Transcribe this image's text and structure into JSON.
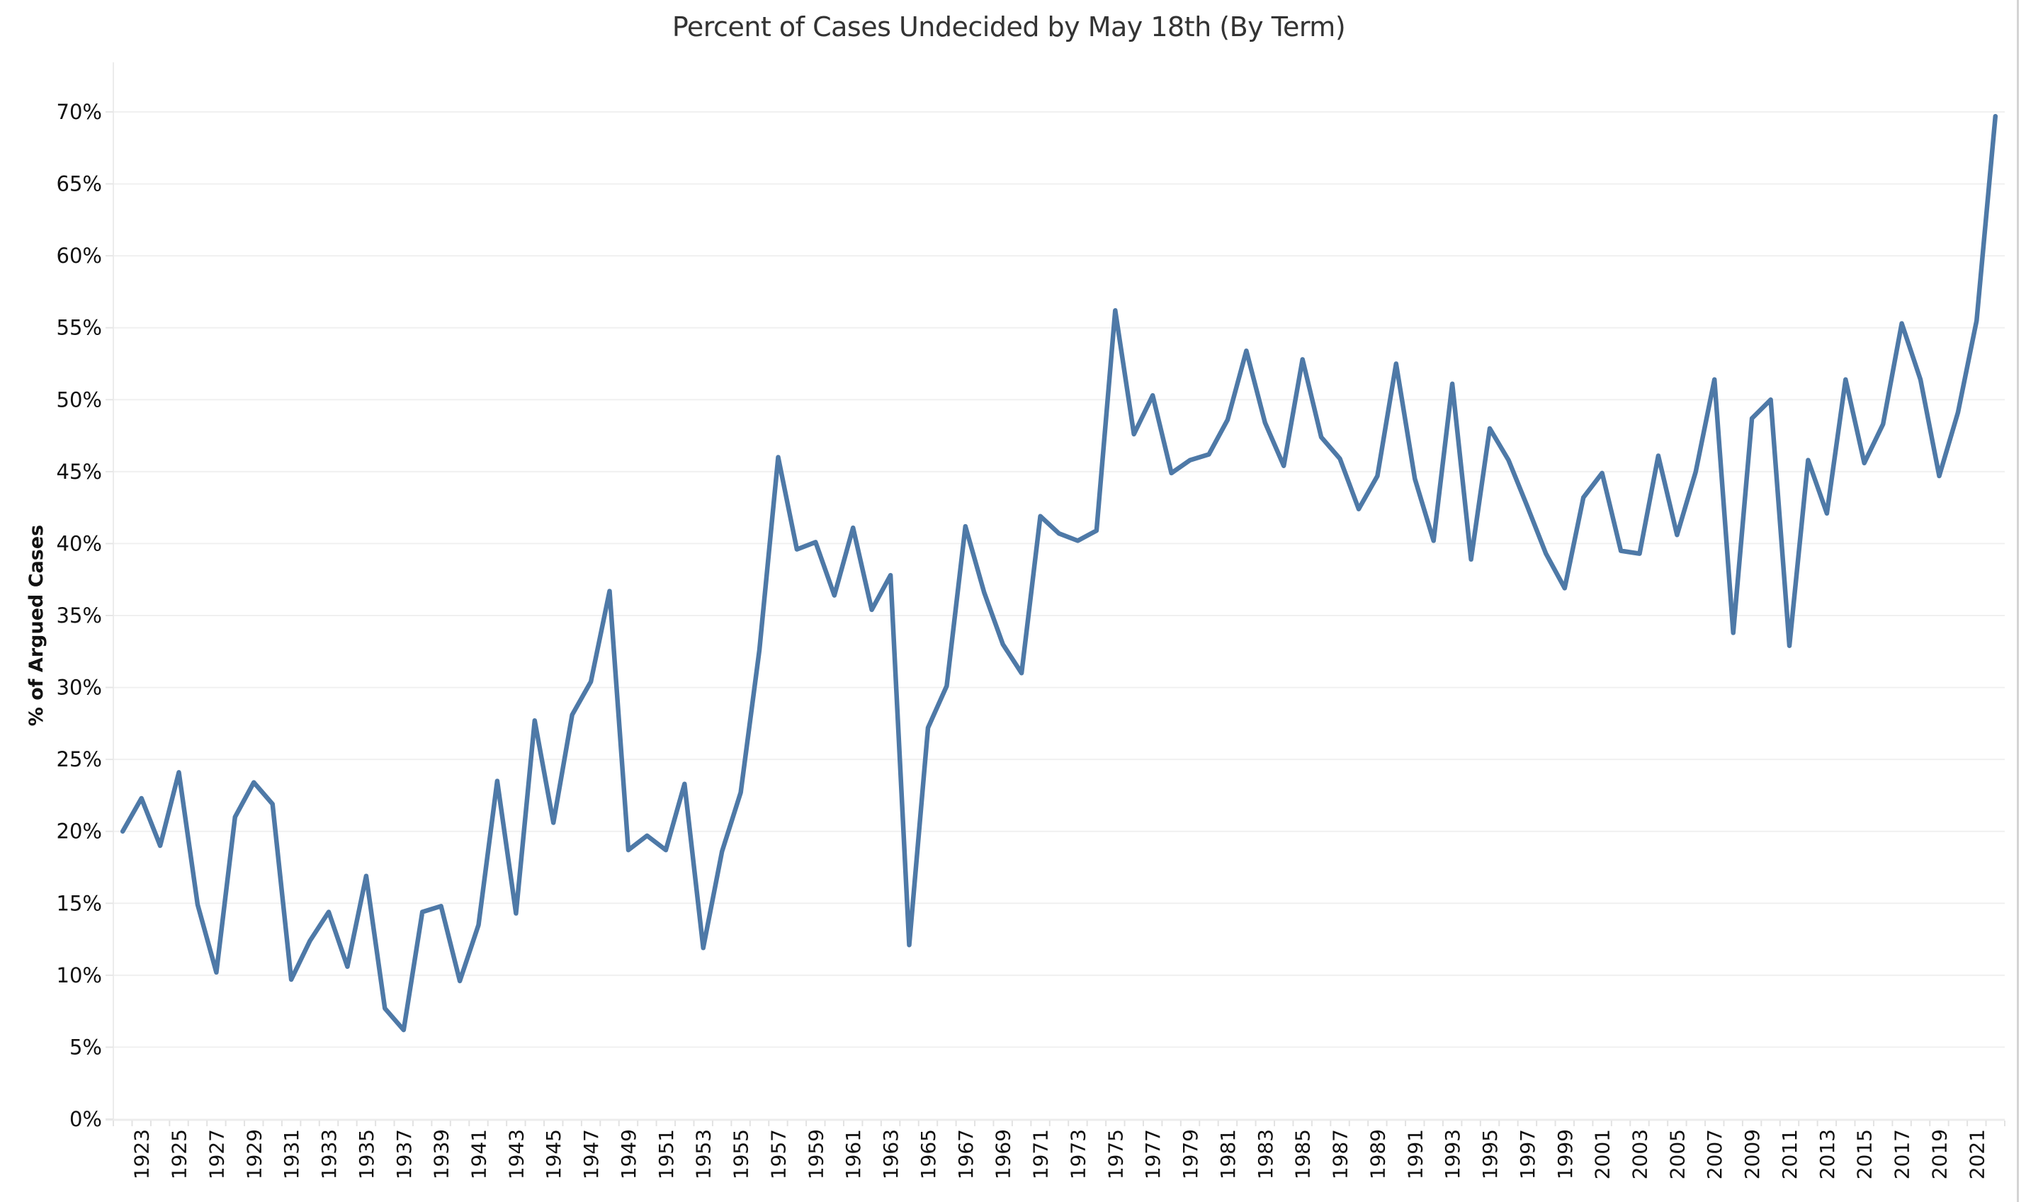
{
  "chart_data": {
    "type": "line",
    "title": "Percent of Cases Undecided by May 18th (By Term)",
    "xlabel": "",
    "ylabel": "% of Argued Cases",
    "ylim": [
      0,
      70
    ],
    "yticks": [
      0,
      5,
      10,
      15,
      20,
      25,
      30,
      35,
      40,
      45,
      50,
      55,
      60,
      65,
      70
    ],
    "ytick_labels": [
      "0%",
      "5%",
      "10%",
      "15%",
      "20%",
      "25%",
      "30%",
      "35%",
      "40%",
      "45%",
      "50%",
      "55%",
      "60%",
      "65%",
      "70%"
    ],
    "xlim": [
      1922,
      2022
    ],
    "xtick_labels": [
      "1923",
      "1925",
      "1927",
      "1929",
      "1931",
      "1933",
      "1935",
      "1937",
      "1939",
      "1941",
      "1943",
      "1945",
      "1947",
      "1949",
      "1951",
      "1953",
      "1955",
      "1957",
      "1959",
      "1961",
      "1963",
      "1965",
      "1967",
      "1969",
      "1971",
      "1973",
      "1975",
      "1977",
      "1979",
      "1981",
      "1983",
      "1985",
      "1987",
      "1989",
      "1991",
      "1993",
      "1995",
      "1997",
      "1999",
      "2001",
      "2003",
      "2005",
      "2007",
      "2009",
      "2011",
      "2013",
      "2015",
      "2017",
      "2019",
      "2021"
    ],
    "grid": "horizontal",
    "legend": "none",
    "line_color": "#4e79a7",
    "series": [
      {
        "name": "% of Argued Cases",
        "x": [
          1922,
          1923,
          1924,
          1925,
          1926,
          1927,
          1928,
          1929,
          1930,
          1931,
          1932,
          1933,
          1934,
          1935,
          1936,
          1937,
          1938,
          1939,
          1940,
          1941,
          1942,
          1943,
          1944,
          1945,
          1946,
          1947,
          1948,
          1949,
          1950,
          1951,
          1952,
          1953,
          1954,
          1955,
          1956,
          1957,
          1958,
          1959,
          1960,
          1961,
          1962,
          1963,
          1964,
          1965,
          1966,
          1967,
          1968,
          1969,
          1970,
          1971,
          1972,
          1973,
          1974,
          1975,
          1976,
          1977,
          1978,
          1979,
          1980,
          1981,
          1982,
          1983,
          1984,
          1985,
          1986,
          1987,
          1988,
          1989,
          1990,
          1991,
          1992,
          1993,
          1994,
          1995,
          1996,
          1997,
          1998,
          1999,
          2000,
          2001,
          2002,
          2003,
          2004,
          2005,
          2006,
          2007,
          2008,
          2009,
          2010,
          2011,
          2012,
          2013,
          2014,
          2015,
          2016,
          2017,
          2018,
          2019,
          2020,
          2021,
          2022
        ],
        "values": [
          20.0,
          22.3,
          19.0,
          24.1,
          14.9,
          10.2,
          21.0,
          23.4,
          21.9,
          9.7,
          12.4,
          14.4,
          10.6,
          16.9,
          7.7,
          6.2,
          14.4,
          14.8,
          9.6,
          13.5,
          23.5,
          14.3,
          27.7,
          20.6,
          28.1,
          30.4,
          36.7,
          18.7,
          19.7,
          18.7,
          23.3,
          11.9,
          18.6,
          22.7,
          32.6,
          46.0,
          39.6,
          40.1,
          36.4,
          41.1,
          35.4,
          37.8,
          12.1,
          27.2,
          30.1,
          41.2,
          36.6,
          33.0,
          31.0,
          41.9,
          40.7,
          40.2,
          40.9,
          56.2,
          47.6,
          50.3,
          44.9,
          45.8,
          46.2,
          48.6,
          53.4,
          48.4,
          45.4,
          52.8,
          47.4,
          45.9,
          42.4,
          44.7,
          52.5,
          44.5,
          40.2,
          51.1,
          38.9,
          48.0,
          45.8,
          42.6,
          39.3,
          36.9,
          43.2,
          44.9,
          39.5,
          39.3,
          46.1,
          40.6,
          45.0,
          51.4,
          33.8,
          48.7,
          50.0,
          32.9,
          45.8,
          42.1,
          51.4,
          45.6,
          48.3,
          55.3,
          51.4,
          44.7,
          49.1,
          55.5,
          69.7
        ]
      }
    ]
  }
}
